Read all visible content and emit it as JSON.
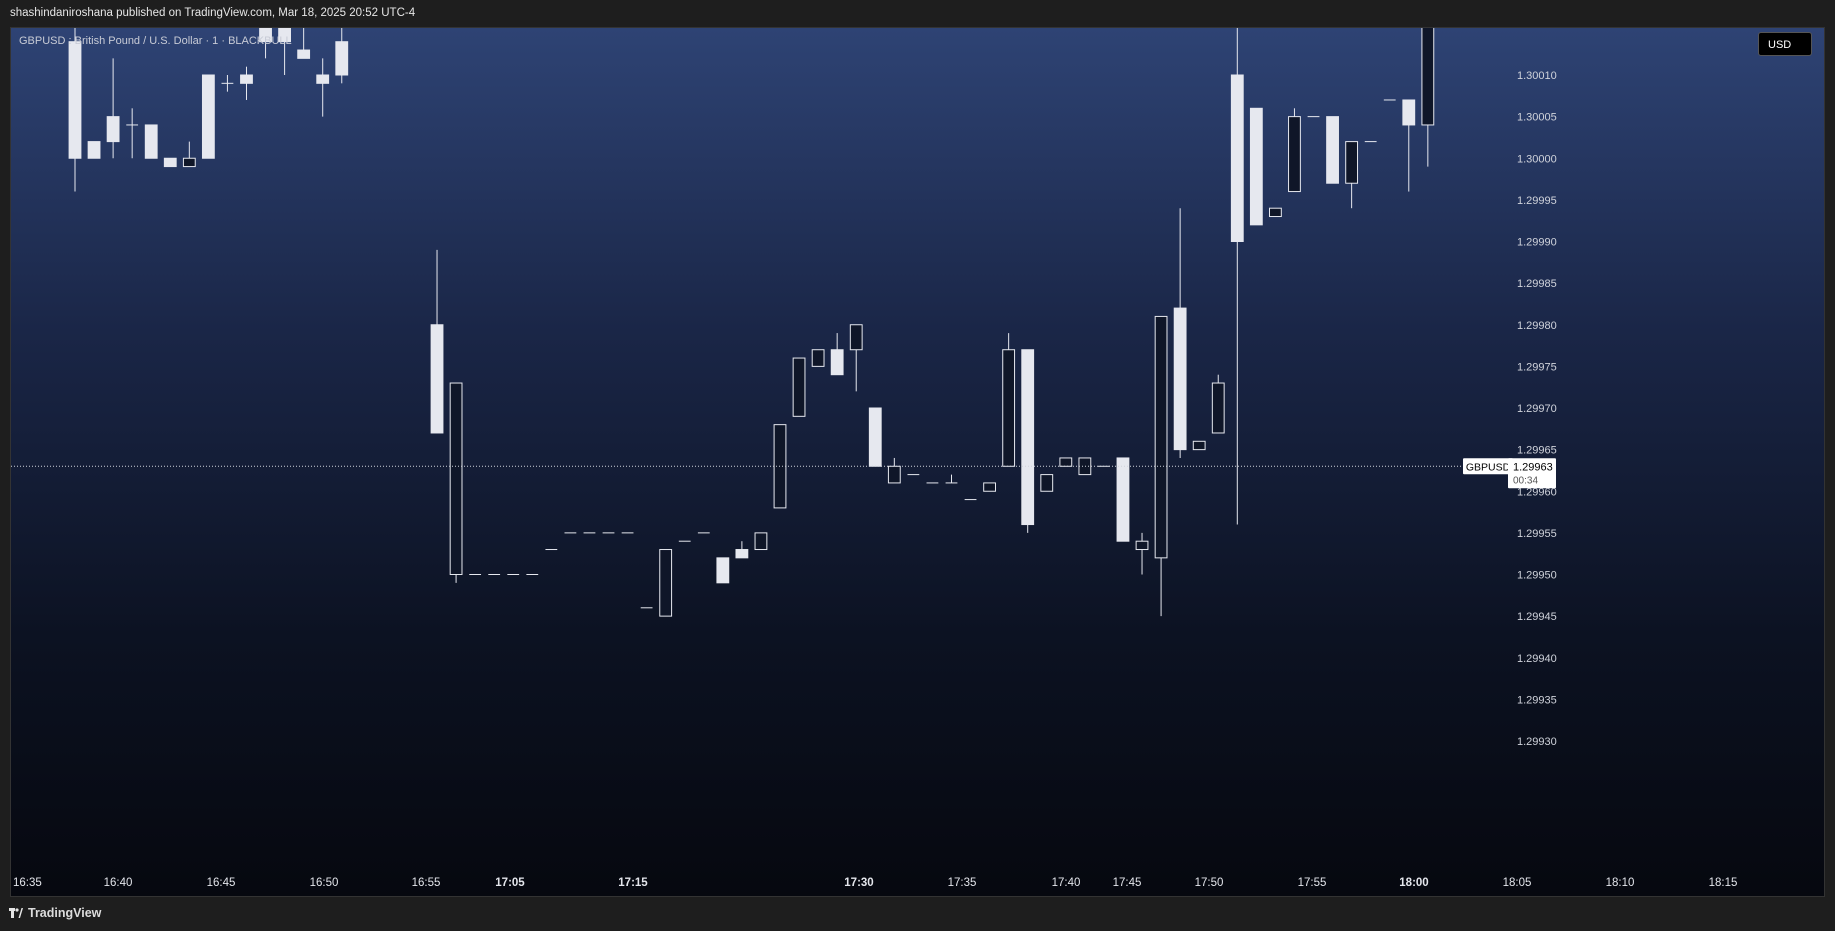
{
  "header": {
    "text": "shashindaniroshana published on TradingView.com, Mar 18, 2025 20:52 UTC-4"
  },
  "chart": {
    "symbol_label": "GBPUSD : British Pound / U.S. Dollar · 1 · BLACKBULL",
    "currency_button": "USD",
    "last_price": {
      "symbol": "GBPUSD",
      "value": "1.29963",
      "countdown": "00:34"
    }
  },
  "footer": {
    "brand": "TradingView"
  },
  "colors": {
    "candle_fill": "#e6e8ef",
    "candle_hollow_border": "#e6e8ef",
    "axis_text": "#d0d3db",
    "price_line": "#cfd3dc"
  },
  "chart_data": {
    "type": "candlestick",
    "ylim": [
      1.2993,
      1.3002
    ],
    "y_ticks": [
      "1.30010",
      "1.30005",
      "1.30000",
      "1.29995",
      "1.29990",
      "1.29985",
      "1.29980",
      "1.29975",
      "1.29970",
      "1.29965",
      "1.29960",
      "1.29955",
      "1.29950",
      "1.29945",
      "1.29940",
      "1.29935",
      "1.29930"
    ],
    "x_ticks": [
      {
        "label": "16:35",
        "bold": false
      },
      {
        "label": "16:40",
        "bold": false
      },
      {
        "label": "16:45",
        "bold": false
      },
      {
        "label": "16:50",
        "bold": false
      },
      {
        "label": "16:55",
        "bold": false
      },
      {
        "label": "17:05",
        "bold": true
      },
      {
        "label": "17:15",
        "bold": true
      },
      {
        "label": "17:30",
        "bold": true
      },
      {
        "label": "17:35",
        "bold": false
      },
      {
        "label": "17:40",
        "bold": false
      },
      {
        "label": "17:45",
        "bold": false
      },
      {
        "label": "17:50",
        "bold": false
      },
      {
        "label": "17:55",
        "bold": false
      },
      {
        "label": "18:00",
        "bold": true
      },
      {
        "label": "18:05",
        "bold": false
      },
      {
        "label": "18:10",
        "bold": false
      },
      {
        "label": "18:15",
        "bold": false
      }
    ],
    "candles": [
      {
        "o": 1.3,
        "h": 1.30025,
        "l": 1.29996,
        "c": 1.30014
      },
      {
        "o": 1.3,
        "h": 1.30002,
        "l": 1.3,
        "c": 1.30002
      },
      {
        "o": 1.30002,
        "h": 1.30012,
        "l": 1.3,
        "c": 1.30005
      },
      {
        "o": 1.30004,
        "h": 1.30006,
        "l": 1.3,
        "c": 1.30004
      },
      {
        "o": 1.3,
        "h": 1.30004,
        "l": 1.3,
        "c": 1.30004
      },
      {
        "o": 1.29999,
        "h": 1.3,
        "l": 1.29999,
        "c": 1.3
      },
      {
        "o": 1.3,
        "h": 1.30002,
        "l": 1.29999,
        "c": 1.29999
      },
      {
        "o": 1.3,
        "h": 1.3001,
        "l": 1.3,
        "c": 1.3001
      },
      {
        "o": 1.30009,
        "h": 1.3001,
        "l": 1.30008,
        "c": 1.30009
      },
      {
        "o": 1.30009,
        "h": 1.30011,
        "l": 1.30007,
        "c": 1.3001
      },
      {
        "o": 1.30014,
        "h": 1.30016,
        "l": 1.30012,
        "c": 1.30016
      },
      {
        "o": 1.30014,
        "h": 1.30018,
        "l": 1.3001,
        "c": 1.30016
      },
      {
        "o": 1.30012,
        "h": 1.30016,
        "l": 1.30012,
        "c": 1.30013
      },
      {
        "o": 1.30009,
        "h": 1.30012,
        "l": 1.30005,
        "c": 1.3001
      },
      {
        "o": 1.3001,
        "h": 1.3002,
        "l": 1.30009,
        "c": 1.30014
      },
      {
        "o": 1.30016,
        "h": 1.30022,
        "l": 1.30016,
        "c": 1.3002
      },
      {
        "o": 1.3002,
        "h": 1.30022,
        "l": 1.30016,
        "c": 1.3002
      },
      {
        "o": 1.3002,
        "h": 1.30022,
        "l": 1.30016,
        "c": 1.30019
      },
      {
        "o": 1.3002,
        "h": 1.30022,
        "l": 1.30016,
        "c": 1.30017
      },
      {
        "o": 1.29967,
        "h": 1.29989,
        "l": 1.29967,
        "c": 1.2998
      },
      {
        "o": 1.29973,
        "h": 1.29973,
        "l": 1.29949,
        "c": 1.2995
      },
      {
        "o": 1.2995,
        "h": 1.2995,
        "l": 1.2995,
        "c": 1.2995
      },
      {
        "o": 1.2995,
        "h": 1.2995,
        "l": 1.2995,
        "c": 1.2995
      },
      {
        "o": 1.2995,
        "h": 1.2995,
        "l": 1.2995,
        "c": 1.2995
      },
      {
        "o": 1.2995,
        "h": 1.2995,
        "l": 1.2995,
        "c": 1.2995
      },
      {
        "o": 1.29953,
        "h": 1.29953,
        "l": 1.29953,
        "c": 1.29953
      },
      {
        "o": 1.29955,
        "h": 1.29955,
        "l": 1.29955,
        "c": 1.29955
      },
      {
        "o": 1.29955,
        "h": 1.29955,
        "l": 1.29955,
        "c": 1.29955
      },
      {
        "o": 1.29955,
        "h": 1.29955,
        "l": 1.29955,
        "c": 1.29955
      },
      {
        "o": 1.29955,
        "h": 1.29955,
        "l": 1.29955,
        "c": 1.29955
      },
      {
        "o": 1.29946,
        "h": 1.29946,
        "l": 1.29946,
        "c": 1.29946
      },
      {
        "o": 1.29953,
        "h": 1.29953,
        "l": 1.29945,
        "c": 1.29945
      },
      {
        "o": 1.29954,
        "h": 1.29954,
        "l": 1.29954,
        "c": 1.29954
      },
      {
        "o": 1.29955,
        "h": 1.29955,
        "l": 1.29955,
        "c": 1.29955
      },
      {
        "o": 1.29949,
        "h": 1.29952,
        "l": 1.29949,
        "c": 1.29952
      },
      {
        "o": 1.29952,
        "h": 1.29954,
        "l": 1.29952,
        "c": 1.29953
      },
      {
        "o": 1.29955,
        "h": 1.29955,
        "l": 1.29953,
        "c": 1.29953
      },
      {
        "o": 1.29968,
        "h": 1.29968,
        "l": 1.29958,
        "c": 1.29958
      },
      {
        "o": 1.29976,
        "h": 1.29976,
        "l": 1.29969,
        "c": 1.29969
      },
      {
        "o": 1.29977,
        "h": 1.29977,
        "l": 1.29975,
        "c": 1.29975
      },
      {
        "o": 1.29974,
        "h": 1.29979,
        "l": 1.29974,
        "c": 1.29977
      },
      {
        "o": 1.2998,
        "h": 1.2998,
        "l": 1.29972,
        "c": 1.29977
      },
      {
        "o": 1.29963,
        "h": 1.2997,
        "l": 1.29963,
        "c": 1.2997
      },
      {
        "o": 1.29963,
        "h": 1.29964,
        "l": 1.29961,
        "c": 1.29961
      },
      {
        "o": 1.29962,
        "h": 1.29962,
        "l": 1.29962,
        "c": 1.29962
      },
      {
        "o": 1.29961,
        "h": 1.29961,
        "l": 1.29961,
        "c": 1.29961
      },
      {
        "o": 1.29961,
        "h": 1.29962,
        "l": 1.29961,
        "c": 1.29961
      },
      {
        "o": 1.29959,
        "h": 1.29959,
        "l": 1.29959,
        "c": 1.29959
      },
      {
        "o": 1.29961,
        "h": 1.29961,
        "l": 1.2996,
        "c": 1.2996
      },
      {
        "o": 1.29977,
        "h": 1.29979,
        "l": 1.29963,
        "c": 1.29963
      },
      {
        "o": 1.29956,
        "h": 1.29977,
        "l": 1.29955,
        "c": 1.29977
      },
      {
        "o": 1.29962,
        "h": 1.29962,
        "l": 1.2996,
        "c": 1.2996
      },
      {
        "o": 1.29964,
        "h": 1.29964,
        "l": 1.29963,
        "c": 1.29963
      },
      {
        "o": 1.29964,
        "h": 1.29964,
        "l": 1.29962,
        "c": 1.29962
      },
      {
        "o": 1.29963,
        "h": 1.29963,
        "l": 1.29963,
        "c": 1.29963
      },
      {
        "o": 1.29954,
        "h": 1.29964,
        "l": 1.29954,
        "c": 1.29964
      },
      {
        "o": 1.29954,
        "h": 1.29955,
        "l": 1.2995,
        "c": 1.29953
      },
      {
        "o": 1.29981,
        "h": 1.29981,
        "l": 1.29945,
        "c": 1.29952
      },
      {
        "o": 1.29965,
        "h": 1.29994,
        "l": 1.29964,
        "c": 1.29982
      },
      {
        "o": 1.29966,
        "h": 1.29966,
        "l": 1.29965,
        "c": 1.29965
      },
      {
        "o": 1.29973,
        "h": 1.29974,
        "l": 1.29967,
        "c": 1.29967
      },
      {
        "o": 1.2999,
        "h": 1.3003,
        "l": 1.29956,
        "c": 1.3001
      },
      {
        "o": 1.29992,
        "h": 1.30006,
        "l": 1.29992,
        "c": 1.30006
      },
      {
        "o": 1.29994,
        "h": 1.29994,
        "l": 1.29993,
        "c": 1.29993
      },
      {
        "o": 1.30005,
        "h": 1.30006,
        "l": 1.29996,
        "c": 1.29996
      },
      {
        "o": 1.30005,
        "h": 1.30005,
        "l": 1.30005,
        "c": 1.30005
      },
      {
        "o": 1.29997,
        "h": 1.30005,
        "l": 1.29997,
        "c": 1.30005
      },
      {
        "o": 1.30002,
        "h": 1.30002,
        "l": 1.29994,
        "c": 1.29997
      },
      {
        "o": 1.30002,
        "h": 1.30002,
        "l": 1.30002,
        "c": 1.30002
      },
      {
        "o": 1.30007,
        "h": 1.30007,
        "l": 1.30007,
        "c": 1.30007
      },
      {
        "o": 1.30004,
        "h": 1.30007,
        "l": 1.29996,
        "c": 1.30007
      },
      {
        "o": 1.30022,
        "h": 1.30022,
        "l": 1.29999,
        "c": 1.30004
      },
      {
        "o": 1.30022,
        "h": 1.30022,
        "l": 1.30018,
        "c": 1.30022
      },
      {
        "o": 1.30016,
        "h": 1.30022,
        "l": 1.30016,
        "c": 1.30022
      },
      {
        "o": 1.30019,
        "h": 1.30022,
        "l": 1.30017,
        "c": 1.30021
      }
    ]
  }
}
